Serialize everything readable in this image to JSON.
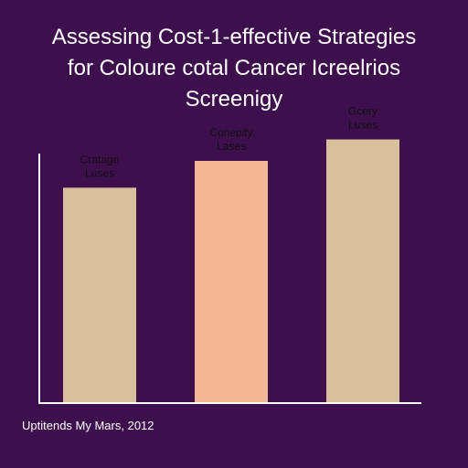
{
  "chart_data": {
    "type": "bar",
    "title": "Assessing Cost-1-effective Strategies\nfor Coloure cotal Cancer Icreelrios\nScreenigy",
    "xlabel": "",
    "ylabel": "",
    "categories": [
      "Cratage Luses",
      "Conepity Lases",
      "Gcery Luses"
    ],
    "category_lines": [
      [
        "Cratage",
        "Luses"
      ],
      [
        "Conepity",
        "Lases"
      ],
      [
        "Gcery",
        "Luses"
      ]
    ],
    "values": [
      0.8,
      0.9,
      0.98
    ],
    "ylim": [
      0,
      1.2
    ],
    "bar_colors": [
      "#d9c09a",
      "#f2b795",
      "#d9c09a"
    ],
    "label_placement": "above-bar",
    "grid": false,
    "legend": "none"
  },
  "footer": {
    "note": "Uptitends My Mars, 2012"
  },
  "colors": {
    "background": "#3e0f4d",
    "axis": "#ffffff",
    "text": "#ffffff",
    "label_text": "#111111"
  }
}
